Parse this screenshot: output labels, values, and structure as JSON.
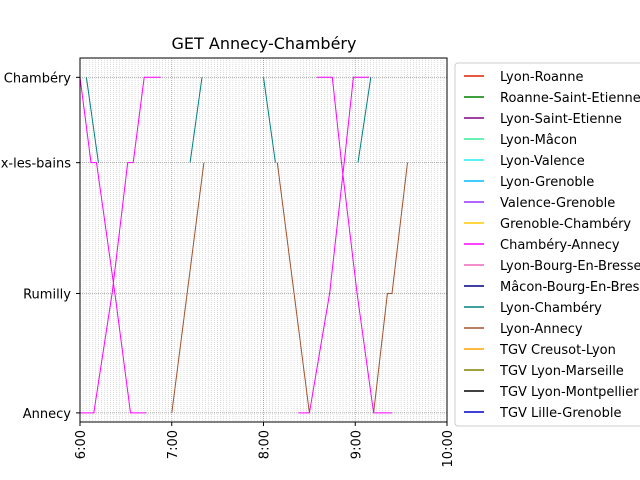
{
  "chart_data": {
    "type": "line",
    "title": "GET Annecy-Chambéry",
    "xlabel": "",
    "ylabel": "",
    "x_unit": "time of day (hours)",
    "xlim": [
      6.0,
      10.0
    ],
    "x_ticks": [
      {
        "value": 6,
        "label": "6:00"
      },
      {
        "value": 7,
        "label": "7:00"
      },
      {
        "value": 8,
        "label": "8:00"
      },
      {
        "value": 9,
        "label": "9:00"
      },
      {
        "value": 10,
        "label": "10:00"
      }
    ],
    "y_ticks": [
      {
        "value": 0,
        "label": "Annecy"
      },
      {
        "value": 10.5,
        "label": "Rumilly"
      },
      {
        "value": 22.0,
        "label": "Aix-les-bains"
      },
      {
        "value": 29.5,
        "label": "Chambéry"
      }
    ],
    "ylim": [
      -0.8,
      31.2
    ],
    "grid": true,
    "minor_grid_x_step_minutes": 2,
    "legend_position": "outside-right",
    "series": [
      {
        "name": "Lyon-Roanne",
        "color": "#dd2200",
        "lines": []
      },
      {
        "name": "Roanne-Saint-Etienne",
        "color": "#008000",
        "lines": []
      },
      {
        "name": "Lyon-Saint-Etienne",
        "color": "#800080",
        "lines": []
      },
      {
        "name": "Lyon-Mâcon",
        "color": "#33ee99",
        "lines": []
      },
      {
        "name": "Lyon-Valence",
        "color": "#22eeee",
        "lines": []
      },
      {
        "name": "Lyon-Grenoble",
        "color": "#00bbff",
        "lines": []
      },
      {
        "name": "Valence-Grenoble",
        "color": "#9933ff",
        "lines": []
      },
      {
        "name": "Grenoble-Chambéry",
        "color": "#ffcc00",
        "lines": []
      },
      {
        "name": "Chambéry-Annecy",
        "color": "#ff00ff",
        "lines": [
          [
            [
              6.0,
              29.5
            ],
            [
              6.12,
              22.0
            ],
            [
              6.18,
              22.0
            ],
            [
              6.38,
              10.5
            ],
            [
              6.55,
              0.0
            ],
            [
              6.72,
              0.0
            ]
          ],
          [
            [
              6.0,
              0.0
            ],
            [
              6.15,
              0.0
            ],
            [
              6.35,
              10.5
            ],
            [
              6.52,
              22.0
            ],
            [
              6.58,
              22.0
            ],
            [
              6.7,
              29.5
            ],
            [
              6.88,
              29.5
            ]
          ],
          [
            [
              8.38,
              0.0
            ],
            [
              8.5,
              0.0
            ],
            [
              8.72,
              10.5
            ],
            [
              8.88,
              22.0
            ],
            [
              8.98,
              29.5
            ],
            [
              9.15,
              29.5
            ]
          ],
          [
            [
              8.58,
              29.5
            ],
            [
              8.75,
              29.5
            ],
            [
              8.85,
              22.0
            ],
            [
              9.02,
              10.5
            ],
            [
              9.2,
              0.0
            ],
            [
              9.4,
              0.0
            ]
          ]
        ]
      },
      {
        "name": "Lyon-Bourg-En-Bresse",
        "color": "#ee66bb",
        "lines": []
      },
      {
        "name": "Mâcon-Bourg-En-Bresse",
        "color": "#000080",
        "lines": []
      },
      {
        "name": "Lyon-Chambéry",
        "color": "#008080",
        "lines": [
          [
            [
              6.07,
              29.5
            ],
            [
              6.2,
              22.0
            ]
          ],
          [
            [
              7.2,
              22.0
            ],
            [
              7.33,
              29.5
            ]
          ],
          [
            [
              8.0,
              29.5
            ],
            [
              8.13,
              22.0
            ]
          ],
          [
            [
              9.03,
              22.0
            ],
            [
              9.17,
              29.5
            ]
          ]
        ]
      },
      {
        "name": "Lyon-Annecy",
        "color": "#a0522d",
        "lines": [
          [
            [
              7.0,
              0.0
            ],
            [
              7.35,
              22.0
            ]
          ],
          [
            [
              8.15,
              22.0
            ],
            [
              8.5,
              0.0
            ]
          ],
          [
            [
              9.2,
              0.0
            ],
            [
              9.35,
              10.5
            ],
            [
              9.4,
              10.5
            ],
            [
              9.57,
              22.0
            ]
          ]
        ]
      },
      {
        "name": "TGV Creusot-Lyon",
        "color": "#ffa500",
        "lines": []
      },
      {
        "name": "TGV Lyon-Marseille",
        "color": "#808000",
        "lines": []
      },
      {
        "name": "TGV Lyon-Montpellier",
        "color": "#000000",
        "lines": []
      },
      {
        "name": "TGV Lille-Grenoble",
        "color": "#0000cc",
        "lines": []
      }
    ]
  }
}
